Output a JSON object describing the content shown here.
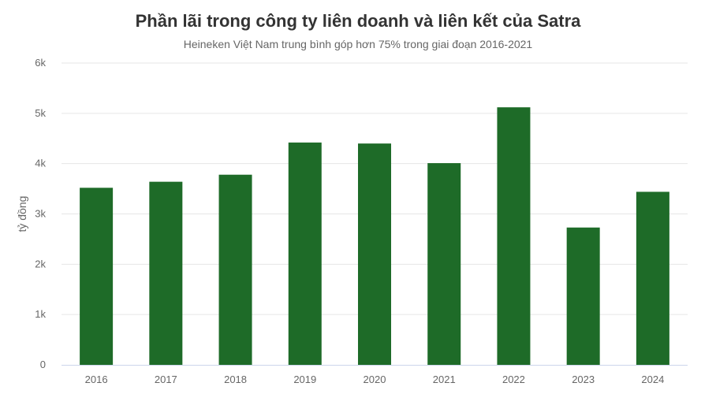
{
  "chart_data": {
    "type": "bar",
    "title": "Phần lãi trong công ty liên doanh và liên kết của Satra",
    "subtitle": "Heineken Việt Nam trung bình góp hơn 75% trong giai đoạn 2016-2021",
    "ylabel": "tỷ đồng",
    "xlabel": "",
    "categories": [
      "2016",
      "2017",
      "2018",
      "2019",
      "2020",
      "2021",
      "2022",
      "2023",
      "2024"
    ],
    "values": [
      3520,
      3640,
      3780,
      4420,
      4400,
      4010,
      5120,
      2730,
      3440
    ],
    "ylim": [
      0,
      6000
    ],
    "y_ticks": [
      0,
      1000,
      2000,
      3000,
      4000,
      5000,
      6000
    ],
    "y_tick_labels": [
      "0",
      "1k",
      "2k",
      "3k",
      "4k",
      "5k",
      "6k"
    ],
    "grid": true,
    "bar_color": "#1e6b28",
    "grid_color": "#e6e6e6",
    "axis_color": "#ccd6eb"
  }
}
